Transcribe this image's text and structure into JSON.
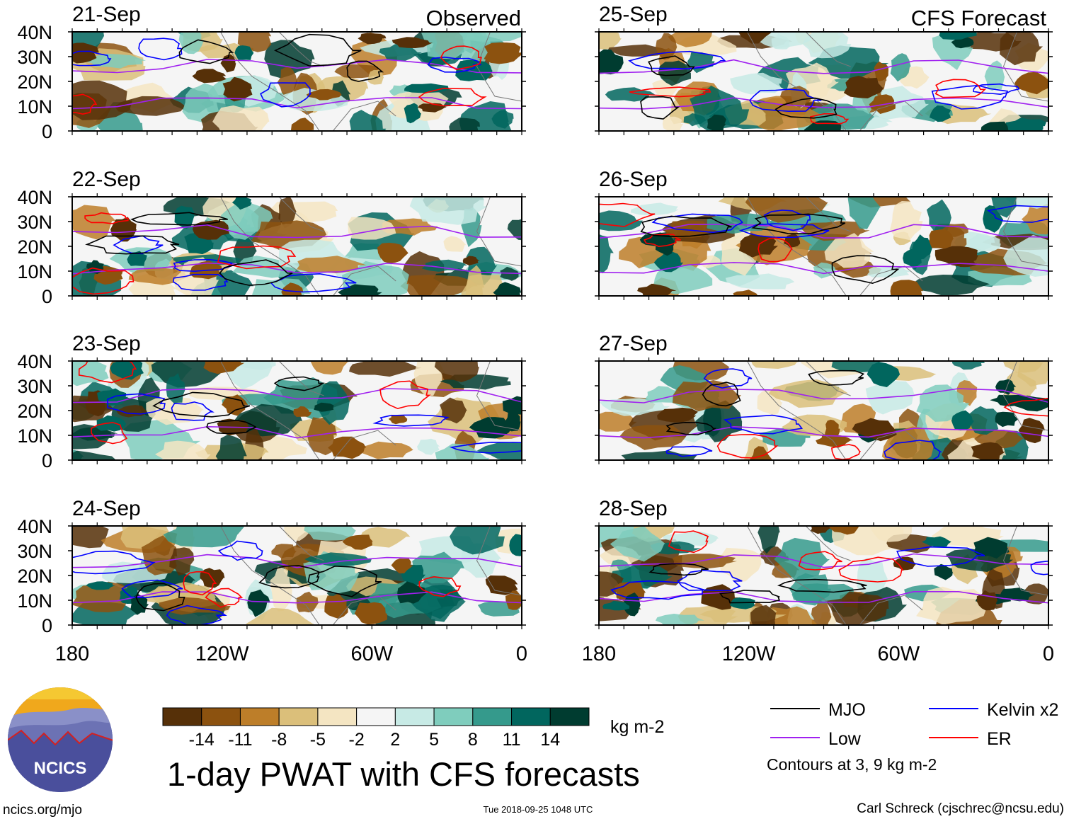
{
  "headers": {
    "observed": "Observed",
    "forecast": "CFS Forecast"
  },
  "panels": {
    "observed": [
      {
        "date": "21-Sep"
      },
      {
        "date": "22-Sep"
      },
      {
        "date": "23-Sep"
      },
      {
        "date": "24-Sep"
      }
    ],
    "forecast": [
      {
        "date": "25-Sep"
      },
      {
        "date": "26-Sep"
      },
      {
        "date": "27-Sep"
      },
      {
        "date": "28-Sep"
      }
    ]
  },
  "axes": {
    "lat_labels": [
      "40N",
      "30N",
      "20N",
      "10N",
      "0"
    ],
    "lon_labels": [
      "180",
      "120W",
      "60W",
      "0"
    ]
  },
  "colorbar": {
    "colors": [
      "#563008",
      "#8c520f",
      "#bd7e29",
      "#dbbf7a",
      "#f4e5c2",
      "#f5f5f5",
      "#c7eae5",
      "#7fcdbd",
      "#359a8c",
      "#01665e",
      "#003c30"
    ],
    "tick_labels": [
      "-14",
      "-11",
      "-8",
      "-5",
      "-2",
      "2",
      "5",
      "8",
      "11",
      "14"
    ],
    "units": "kg m-2"
  },
  "title": "1-day PWAT with CFS forecasts",
  "legend": {
    "items": [
      {
        "label": "MJO",
        "color": "#000000"
      },
      {
        "label": "Kelvin x2",
        "color": "#0000ff"
      },
      {
        "label": "Low",
        "color": "#a020f0"
      },
      {
        "label": "ER",
        "color": "#ff0000"
      }
    ],
    "note": "Contours at 3, 9 kg m-2"
  },
  "logo": {
    "text": "NCICS"
  },
  "footer": {
    "url": "ncics.org/mjo",
    "timestamp": "Tue 2018-09-25 1048 UTC",
    "credit": "Carl Schreck (cjschrec@ncsu.edu)"
  }
}
